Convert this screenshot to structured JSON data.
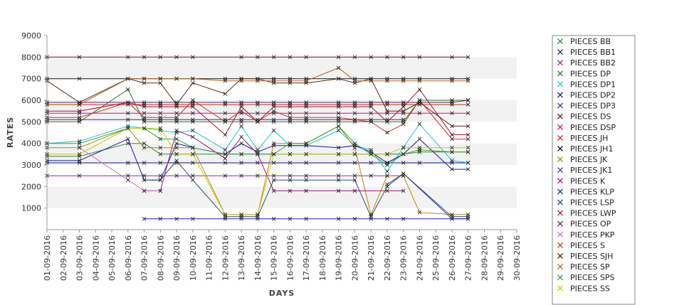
{
  "chart_data": {
    "type": "line",
    "xlabel": "DAYS",
    "ylabel": "RATES",
    "ylim": [
      0,
      9000
    ],
    "yticks": [
      1000,
      2000,
      3000,
      4000,
      5000,
      6000,
      7000,
      8000,
      9000
    ],
    "grid": "alternating horizontal bands",
    "legend_position": "right",
    "categories": [
      "01-09-2016",
      "02-09-2016",
      "03-09-2016",
      "04-09-2016",
      "05-09-2016",
      "06-09-2016",
      "07-09-2016",
      "08-09-2016",
      "09-09-2016",
      "10-09-2016",
      "11-09-2016",
      "12-09-2016",
      "13-09-2016",
      "14-09-2016",
      "15-09-2016",
      "16-09-2016",
      "17-09-2016",
      "18-09-2016",
      "19-09-2016",
      "20-09-2016",
      "21-09-2016",
      "22-09-2016",
      "23-09-2016",
      "24-09-2016",
      "25-09-2016",
      "26-09-2016",
      "27-09-2016",
      "28-09-2016",
      "29-09-2016",
      "30-09-2016"
    ],
    "series": [
      {
        "name": "PIECES BB",
        "color": "#2e8b2e",
        "values": [
          3400,
          null,
          3400,
          null,
          null,
          4000,
          4000,
          3500,
          3500,
          3500,
          null,
          3500,
          3500,
          3500,
          3500,
          3500,
          3500,
          null,
          3500,
          3500,
          3500,
          3500,
          3500,
          3600,
          null,
          3600,
          3600,
          null,
          null,
          null
        ]
      },
      {
        "name": "PIECES BB1",
        "color": "#1c1c8c",
        "values": [
          3100,
          null,
          3100,
          null,
          null,
          3100,
          3100,
          3100,
          3100,
          3100,
          null,
          3100,
          3100,
          3100,
          3100,
          3100,
          3100,
          null,
          3100,
          3100,
          3100,
          3100,
          3100,
          3100,
          null,
          3100,
          3100,
          null,
          null,
          null
        ]
      },
      {
        "name": "PIECES BB2",
        "color": "#8b2e8b",
        "values": [
          2500,
          null,
          2500,
          null,
          null,
          2500,
          2500,
          2500,
          2500,
          2500,
          null,
          2500,
          2500,
          2500,
          2500,
          2500,
          2500,
          null,
          2500,
          2500,
          2500,
          2500,
          2500,
          null,
          null,
          null,
          null,
          null,
          null,
          null
        ]
      },
      {
        "name": "PIECES DP",
        "color": "#2a7a2a",
        "values": [
          5000,
          null,
          5000,
          null,
          null,
          6500,
          5000,
          5000,
          5000,
          5000,
          null,
          5000,
          5000,
          5000,
          5000,
          5000,
          5000,
          null,
          5000,
          5000,
          5000,
          5000,
          5000,
          6000,
          null,
          6000,
          6000,
          null,
          null,
          null
        ]
      },
      {
        "name": "PIECES DP1",
        "color": "#19c8c8",
        "values": [
          4000,
          null,
          4100,
          null,
          null,
          4800,
          4700,
          4600,
          4500,
          4600,
          null,
          3700,
          4800,
          3700,
          4600,
          3900,
          3900,
          null,
          4600,
          3900,
          3700,
          2700,
          3800,
          4900,
          null,
          3200,
          3100,
          null,
          null,
          null
        ]
      },
      {
        "name": "PIECES DP2",
        "color": "#1a1aa8",
        "values": [
          3200,
          null,
          3200,
          null,
          null,
          4200,
          2300,
          2300,
          4000,
          3800,
          null,
          3500,
          4000,
          3600,
          3900,
          3900,
          3900,
          null,
          3800,
          3900,
          3600,
          3100,
          3500,
          4200,
          null,
          2800,
          2800,
          null,
          null,
          null
        ]
      },
      {
        "name": "PIECES DP3",
        "color": "#5522aa",
        "values": [
          5100,
          null,
          5100,
          null,
          null,
          5100,
          5100,
          5100,
          5100,
          5100,
          null,
          5100,
          5100,
          5100,
          5100,
          5100,
          5100,
          null,
          5100,
          5100,
          5100,
          5100,
          5100,
          null,
          null,
          null,
          null,
          null,
          null,
          null
        ]
      },
      {
        "name": "PIECES DS",
        "color": "#6a1a1a",
        "values": [
          8000,
          null,
          8000,
          null,
          null,
          8000,
          8000,
          8000,
          8000,
          8000,
          null,
          null,
          8000,
          8000,
          8000,
          8000,
          8000,
          null,
          8000,
          8000,
          8000,
          8000,
          8000,
          8000,
          null,
          8000,
          8000,
          null,
          null,
          null
        ]
      },
      {
        "name": "PIECES DSP",
        "color": "#d0108c",
        "values": [
          5400,
          null,
          5400,
          null,
          null,
          5400,
          5400,
          5400,
          5400,
          5400,
          null,
          5400,
          5400,
          5400,
          5400,
          5400,
          5400,
          null,
          5400,
          5400,
          5400,
          5400,
          5400,
          5400,
          null,
          5400,
          5400,
          null,
          null,
          null
        ]
      },
      {
        "name": "PIECES JH",
        "color": "#c0281e",
        "values": [
          5800,
          null,
          5800,
          null,
          null,
          5800,
          5800,
          5800,
          5800,
          5800,
          null,
          5800,
          5800,
          5800,
          5800,
          5800,
          5800,
          null,
          5800,
          5800,
          5800,
          5800,
          5800,
          5800,
          null,
          5800,
          5800,
          null,
          null,
          null
        ]
      },
      {
        "name": "PIECES JH1",
        "color": "#111111",
        "values": [
          7000,
          null,
          7000,
          null,
          null,
          7000,
          7000,
          7000,
          7000,
          7000,
          null,
          7000,
          7000,
          7000,
          7000,
          7000,
          7000,
          null,
          7000,
          7000,
          7000,
          7000,
          7000,
          7000,
          null,
          7000,
          7000,
          null,
          null,
          null
        ]
      },
      {
        "name": "PIECES JK",
        "color": "#b8860b",
        "values": [
          3800,
          null,
          3800,
          null,
          null,
          4700,
          3800,
          3800,
          3800,
          3800,
          null,
          700,
          700,
          700,
          4000,
          4000,
          4000,
          null,
          4800,
          3800,
          700,
          2500,
          2500,
          800,
          null,
          700,
          700,
          null,
          null,
          null
        ]
      },
      {
        "name": "PIECES JK1",
        "color": "#3a3a9a",
        "values": [
          null,
          null,
          null,
          null,
          null,
          null,
          null,
          null,
          null,
          null,
          null,
          null,
          null,
          null,
          null,
          null,
          null,
          null,
          null,
          null,
          null,
          2100,
          2600,
          null,
          null,
          500,
          500,
          null,
          null,
          null
        ]
      },
      {
        "name": "PIECES K",
        "color": "#a01a7a",
        "values": [
          null,
          null,
          null,
          null,
          null,
          null,
          1800,
          1800,
          4600,
          4300,
          null,
          3300,
          4300,
          3500,
          1800,
          1800,
          1800,
          null,
          1800,
          1800,
          null,
          1800,
          1800,
          null,
          null,
          null,
          null,
          null,
          null,
          null
        ]
      },
      {
        "name": "PIECES KLP",
        "color": "#1e1eb8",
        "values": [
          null,
          null,
          null,
          null,
          null,
          null,
          500,
          500,
          500,
          500,
          null,
          500,
          500,
          500,
          500,
          500,
          500,
          null,
          500,
          500,
          500,
          500,
          500,
          null,
          null,
          500,
          500,
          null,
          null,
          null
        ]
      },
      {
        "name": "PIECES LSP",
        "color": "#2a4a7a",
        "values": [
          null,
          null,
          null,
          null,
          null,
          null,
          2300,
          2300,
          3200,
          2300,
          null,
          600,
          600,
          600,
          2300,
          2300,
          2300,
          null,
          2300,
          2300,
          600,
          2000,
          2600,
          null,
          null,
          600,
          600,
          null,
          null,
          null
        ]
      },
      {
        "name": "PIECES LWP",
        "color": "#b0103a",
        "values": [
          5500,
          null,
          5500,
          null,
          null,
          5900,
          5700,
          5700,
          5700,
          5700,
          null,
          4400,
          5700,
          5000,
          5700,
          5700,
          5700,
          null,
          5700,
          5700,
          5700,
          5000,
          5700,
          6500,
          null,
          4400,
          4400,
          null,
          null,
          null
        ]
      },
      {
        "name": "PIECES OP",
        "color": "#5a2a6a",
        "values": [
          5900,
          null,
          5900,
          null,
          null,
          5900,
          5900,
          5900,
          5900,
          5900,
          null,
          5900,
          5900,
          5900,
          5900,
          5900,
          5900,
          null,
          5900,
          5900,
          5900,
          5900,
          5900,
          5900,
          null,
          5900,
          6000,
          null,
          null,
          null
        ]
      },
      {
        "name": "PIECES PKP",
        "color": "#c07ac0",
        "values": [
          null,
          null,
          3800,
          null,
          null,
          2300,
          1800,
          1800,
          null,
          null,
          null,
          null,
          null,
          null,
          null,
          null,
          null,
          null,
          null,
          null,
          null,
          null,
          null,
          null,
          null,
          null,
          null,
          null,
          null,
          null
        ]
      },
      {
        "name": "PIECES S",
        "color": "#cc3322",
        "values": [
          5200,
          null,
          5200,
          null,
          null,
          5900,
          5200,
          5200,
          5200,
          6000,
          null,
          5000,
          5500,
          5000,
          5500,
          5200,
          5200,
          null,
          5200,
          5100,
          5000,
          4500,
          4900,
          6000,
          null,
          4200,
          4200,
          null,
          null,
          null
        ]
      },
      {
        "name": "PIECES SJH",
        "color": "#5a2a10",
        "values": [
          6900,
          null,
          5900,
          null,
          null,
          7000,
          6800,
          6800,
          5800,
          6800,
          null,
          6300,
          7000,
          7000,
          6800,
          6800,
          6800,
          null,
          7000,
          6800,
          7000,
          5500,
          5500,
          5900,
          null,
          4800,
          4800,
          null,
          null,
          null
        ]
      },
      {
        "name": "PIECES SP",
        "color": "#b4641e",
        "values": [
          5800,
          null,
          5800,
          null,
          null,
          7000,
          7000,
          7000,
          7000,
          7000,
          null,
          6900,
          6900,
          6900,
          6900,
          6900,
          6900,
          null,
          7500,
          6900,
          6900,
          6900,
          6900,
          6900,
          null,
          6900,
          6900,
          null,
          null,
          null
        ]
      },
      {
        "name": "PIECES SPS",
        "color": "#3aa03a",
        "values": [
          4000,
          null,
          4000,
          null,
          null,
          4700,
          4700,
          4200,
          4200,
          3800,
          null,
          3500,
          3500,
          3500,
          3500,
          4000,
          4000,
          null,
          4800,
          4000,
          3500,
          3000,
          3500,
          3700,
          null,
          3600,
          3600,
          null,
          null,
          null
        ]
      },
      {
        "name": "PIECES SS",
        "color": "#c8c800",
        "values": [
          3500,
          null,
          3500,
          null,
          null,
          4700,
          4700,
          4700,
          3500,
          3500,
          null,
          700,
          700,
          700,
          3500,
          3500,
          3500,
          null,
          3500,
          3500,
          3500,
          3500,
          3800,
          3800,
          null,
          3800,
          3800,
          null,
          null,
          null
        ]
      }
    ]
  }
}
